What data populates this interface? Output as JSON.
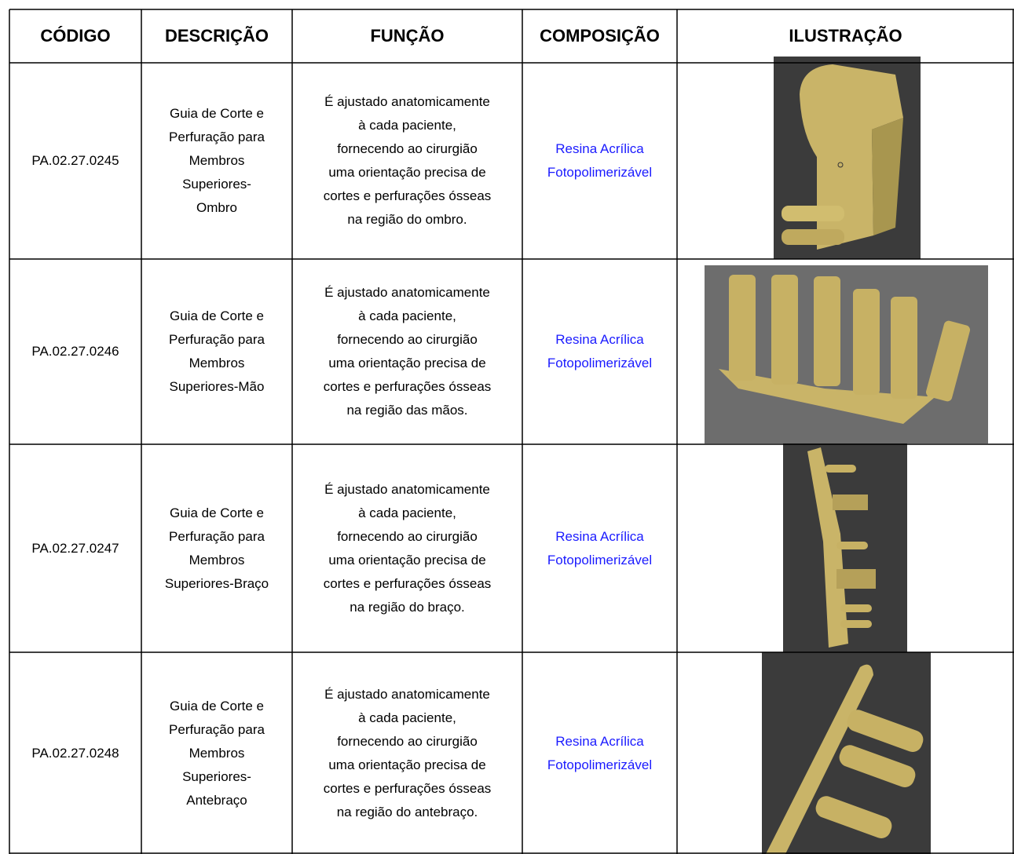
{
  "table": {
    "headers": [
      "CÓDIGO",
      "DESCRIÇÃO",
      "FUNÇÃO",
      "COMPOSIÇÃO",
      "ILUSTRAÇÃO"
    ],
    "rows": [
      {
        "code": "PA.02.27.0245",
        "description": [
          "Guia de Corte e",
          "Perfuração para",
          "Membros",
          "Superiores-",
          "Ombro"
        ],
        "function": [
          "É ajustado anatomicamente",
          "à cada paciente,",
          "fornecendo ao cirurgião",
          "uma orientação precisa de",
          "cortes e perfurações ósseas",
          "na região do ombro."
        ],
        "composition": [
          "Resina Acrílica",
          "Fotopolimerizável"
        ]
      },
      {
        "code": "PA.02.27.0246",
        "description": [
          "Guia de Corte e",
          "Perfuração para",
          "Membros",
          "Superiores-Mão"
        ],
        "function": [
          "É ajustado anatomicamente",
          "à cada paciente,",
          "fornecendo ao cirurgião",
          "uma orientação precisa de",
          "cortes e perfurações ósseas",
          "na região das mãos."
        ],
        "composition": [
          "Resina Acrílica",
          "Fotopolimerizável"
        ]
      },
      {
        "code": "PA.02.27.0247",
        "description": [
          "Guia de Corte e",
          "Perfuração para",
          "Membros",
          "Superiores-Braço"
        ],
        "function": [
          "É ajustado anatomicamente",
          "à cada paciente,",
          "fornecendo ao cirurgião",
          "uma orientação precisa de",
          "cortes e perfurações ósseas",
          "na região do braço."
        ],
        "composition": [
          "Resina Acrílica",
          "Fotopolimerizável"
        ]
      },
      {
        "code": "PA.02.27.0248",
        "description": [
          "Guia de Corte e",
          "Perfuração para",
          "Membros",
          "Superiores-",
          "Antebraço"
        ],
        "function": [
          "É ajustado anatomicamente",
          "à cada paciente,",
          "fornecendo ao cirurgião",
          "uma orientação precisa de",
          "cortes e perfurações ósseas",
          "na região do antebraço."
        ],
        "composition": [
          "Resina Acrílica",
          "Fotopolimerizável"
        ]
      }
    ]
  }
}
